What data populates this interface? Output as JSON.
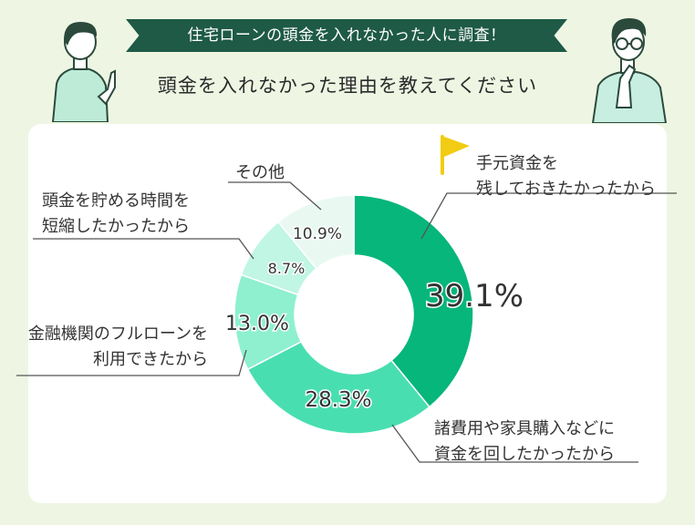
{
  "header": {
    "banner": "住宅ローンの頭金を入れなかった人に調査！",
    "subtitle": "頭金を入れなかった理由を教えてください"
  },
  "chart_data": {
    "type": "pie",
    "title": "",
    "slices": [
      {
        "label_lines": [
          "手元資金を",
          "残しておきたかったから"
        ],
        "value": 39.1,
        "value_label": "39.1%",
        "color": "#07b67a"
      },
      {
        "label_lines": [
          "諸費用や家具購入などに",
          "資金を回したかったから"
        ],
        "value": 28.3,
        "value_label": "28.3%",
        "color": "#49deb0"
      },
      {
        "label_lines": [
          "金融機関のフルローンを",
          "利用できたから"
        ],
        "value": 13.0,
        "value_label": "13.0%",
        "color": "#8ef0cf"
      },
      {
        "label_lines": [
          "頭金を貯める時間を",
          "短縮したかったから"
        ],
        "value": 8.7,
        "value_label": "8.7%",
        "color": "#c0f6e3"
      },
      {
        "label_lines": [
          "その他"
        ],
        "value": 10.9,
        "value_label": "10.9%",
        "color": "#e9f9f2"
      }
    ],
    "colors": {
      "flag": "#f2cc12",
      "leader": "#555555"
    }
  }
}
